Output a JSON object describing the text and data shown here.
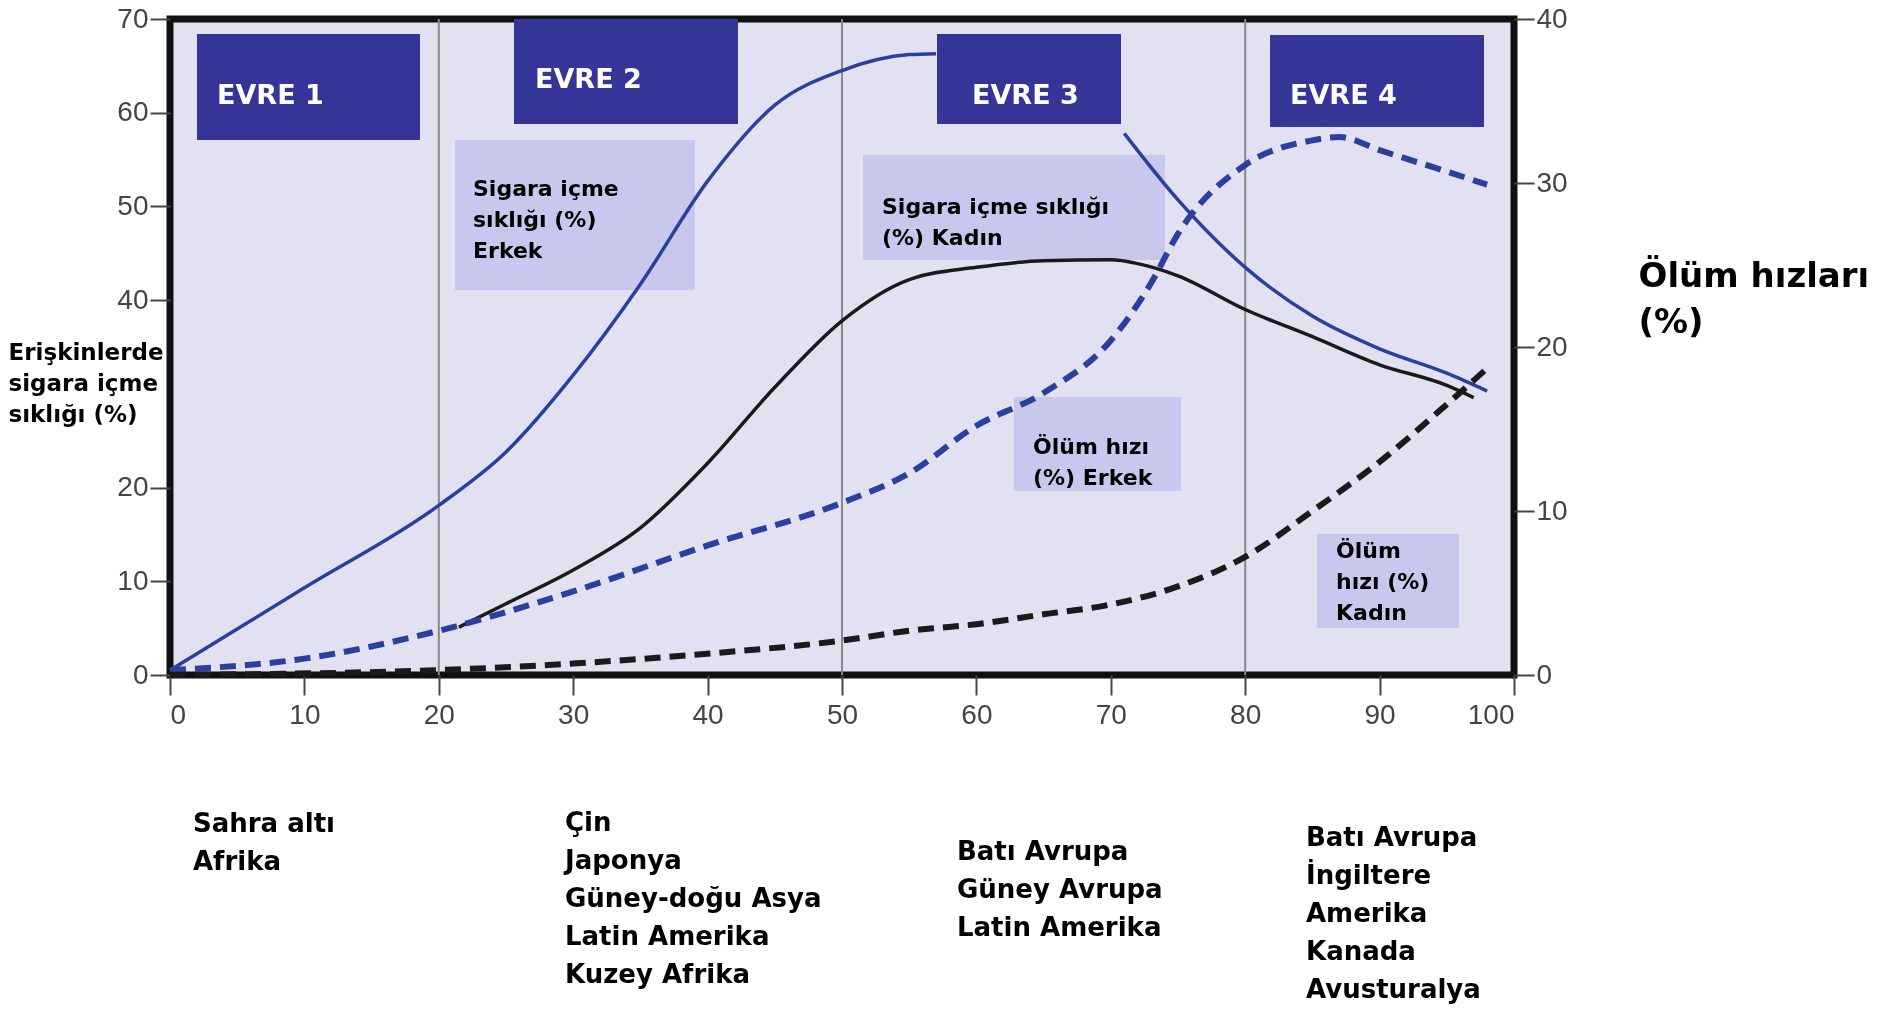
{
  "chart_data": {
    "type": "line",
    "xlim": [
      0,
      100
    ],
    "xticks": [
      0,
      10,
      20,
      30,
      40,
      50,
      60,
      70,
      80,
      90,
      100
    ],
    "ylim": [
      0,
      70
    ],
    "yticks": [
      0,
      10,
      20,
      40,
      50,
      60,
      70
    ],
    "y2lim": [
      0,
      40
    ],
    "y2ticks": [
      0,
      10,
      20,
      30,
      40
    ],
    "ylabel": "Erişkinlerde sigara içme sıklığı (%)",
    "y2label": "Ölüm hızları (%)",
    "series": [
      {
        "name": "Sigara içme sıklığı (%) Erkek",
        "color": "#2b3f9e",
        "line_style": "solid",
        "x": [
          0,
          10,
          20,
          25,
          30,
          35,
          40,
          45,
          50,
          55,
          57,
          63,
          71,
          75,
          80,
          85,
          90,
          95,
          98
        ],
        "values": [
          0.5,
          9.3,
          18.1,
          23.8,
          32,
          41.7,
          52.7,
          60.8,
          64.5,
          66.2,
          66.3,
          null,
          57.8,
          50.7,
          43.5,
          38.3,
          34.8,
          32.2,
          30.3
        ]
      },
      {
        "name": "Sigara içme sıklığı (%) Kadın",
        "color": "#1a1a1a",
        "line_style": "solid",
        "x": [
          21.5,
          25,
          30,
          35,
          40,
          45,
          50,
          55,
          60,
          65,
          70,
          72,
          75,
          80,
          85,
          90,
          95,
          97
        ],
        "values": [
          5.1,
          7.6,
          11.2,
          15.7,
          22.6,
          30.7,
          37.8,
          42.2,
          43.5,
          44.2,
          44.3,
          43.9,
          42.6,
          39,
          36.1,
          33.1,
          30.9,
          29.6
        ]
      },
      {
        "name": "Ölüm hızı (%) Erkek",
        "color": "#2b3f9e",
        "line_style": "dashed",
        "axis": "y2",
        "x": [
          0,
          10,
          20,
          30,
          40,
          50,
          55,
          60,
          65,
          70,
          73,
          75,
          80,
          85,
          87,
          90,
          95,
          98
        ],
        "values": [
          0.3,
          1,
          2.7,
          5.1,
          7.9,
          10.5,
          12.3,
          15.2,
          17.2,
          20.4,
          23.9,
          26.9,
          31.1,
          32.6,
          32.8,
          32,
          30.7,
          29.9
        ]
      },
      {
        "name": "Ölüm hızı (%) Kadın",
        "color": "#1a1a1a",
        "line_style": "dashed",
        "axis": "y2",
        "x": [
          0,
          20,
          30,
          40,
          50,
          55,
          60,
          65,
          70,
          75,
          80,
          85,
          90,
          95,
          98
        ],
        "values": [
          0,
          0.3,
          0.7,
          1.3,
          2.1,
          2.7,
          3.1,
          3.7,
          4.3,
          5.4,
          7.2,
          10,
          13,
          16.5,
          18.7
        ]
      }
    ],
    "ref_lines": [
      {
        "axis": "x",
        "value": 20,
        "color": "#888888"
      },
      {
        "axis": "x",
        "value": 50,
        "color": "#888888"
      },
      {
        "axis": "x",
        "value": 80,
        "color": "#888888"
      }
    ],
    "annotations": [
      "EVRE 1",
      "EVRE 2",
      "EVRE 3",
      "EVRE 4",
      "Sahra altı\nAfrika",
      "Çin\nJaponya\nGüney-doğu Asya\nLatin Amerika\nKuzey Afrika",
      "Batı Avrupa\nGüney Avrupa\nLatin Amerika",
      "Batı Avrupa\nİngiltere\nAmerika\nKanada\nAvusturalya"
    ]
  }
}
